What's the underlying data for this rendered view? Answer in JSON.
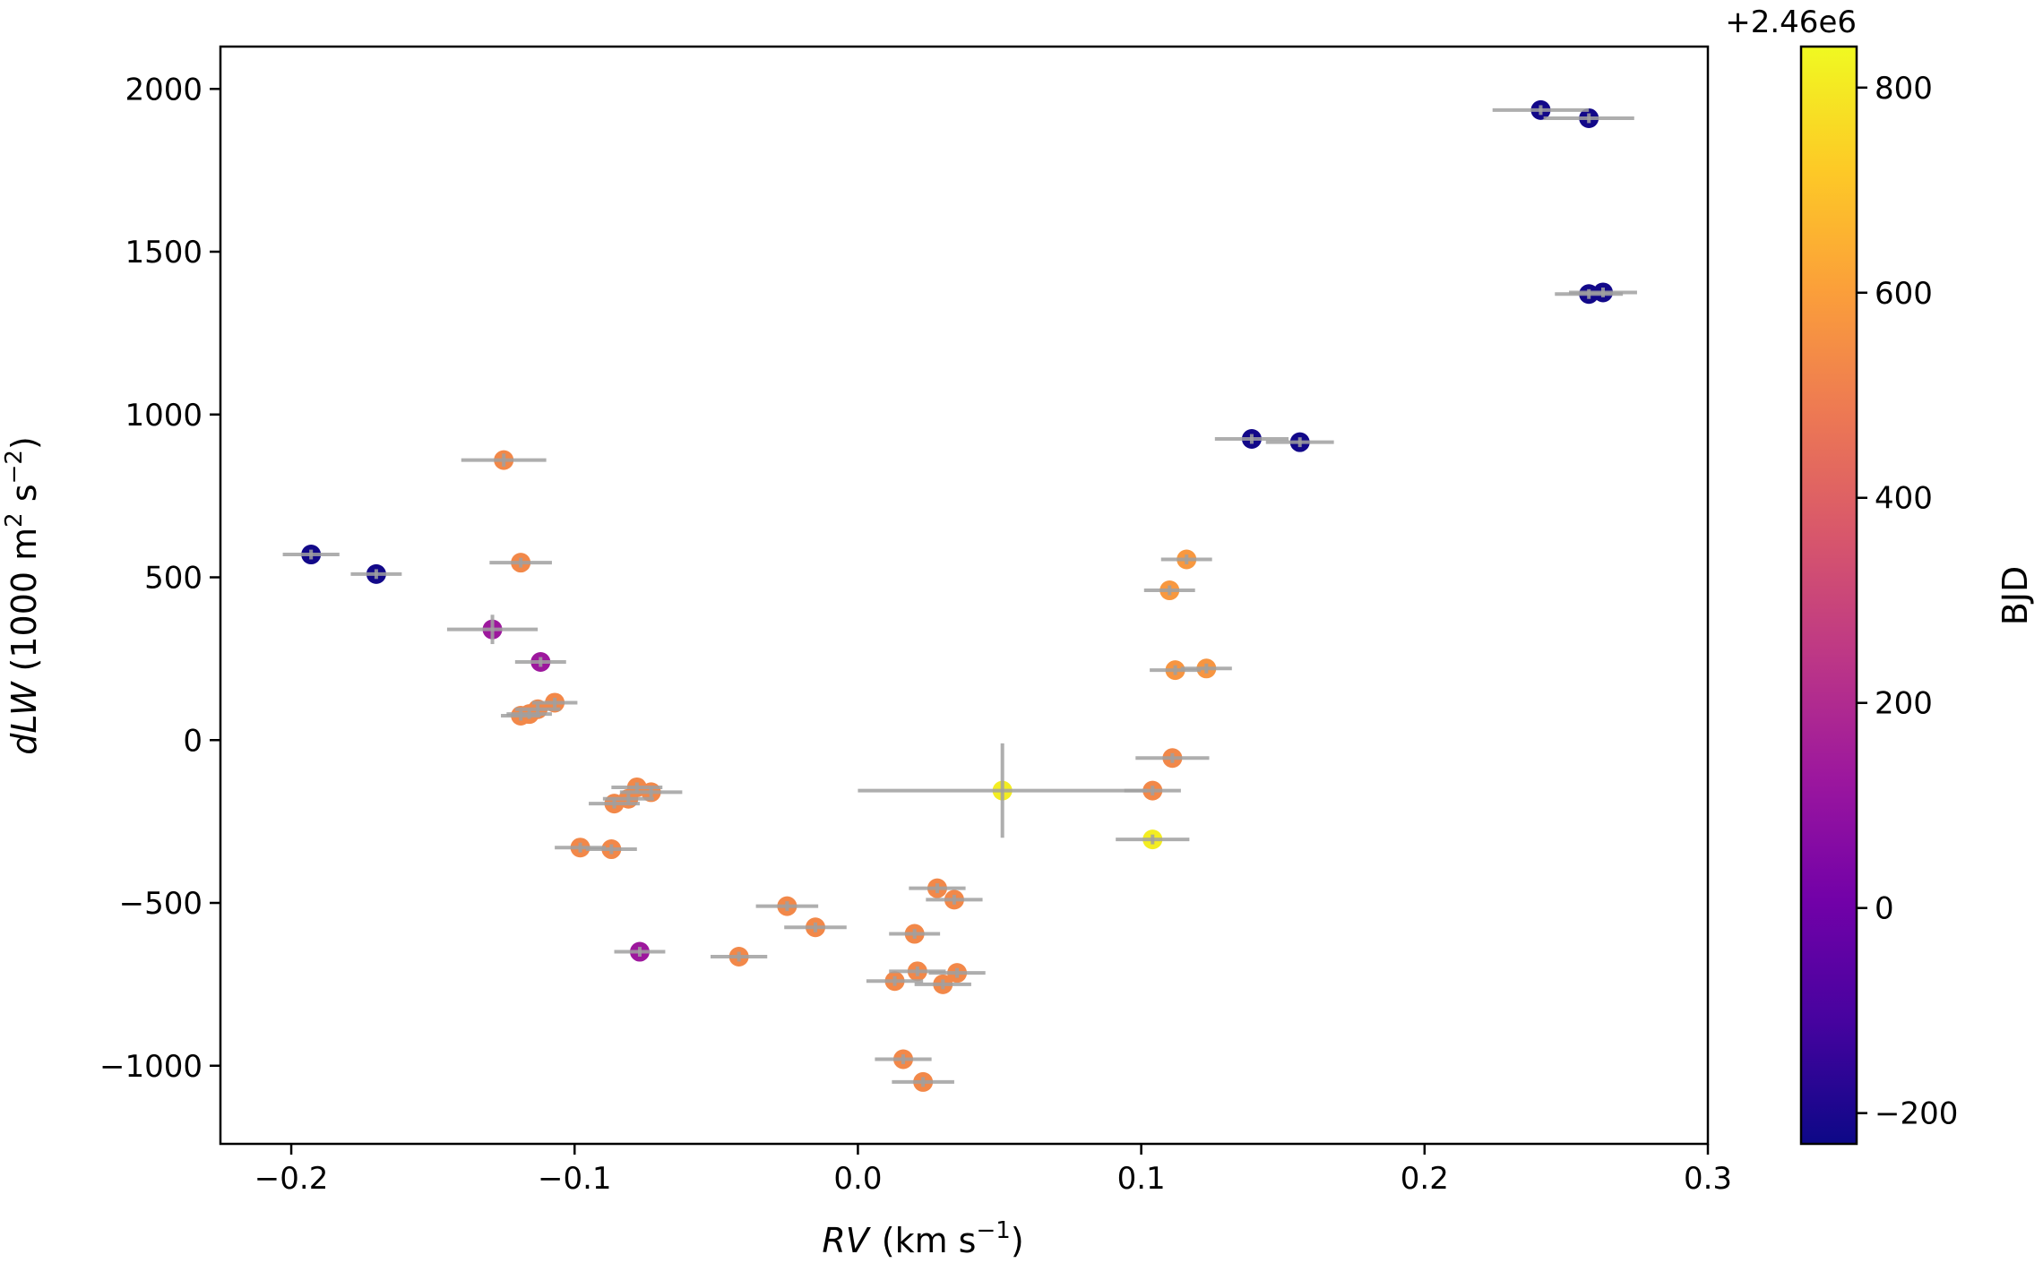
{
  "chart_data": {
    "type": "scatter",
    "xlabel_var": "RV",
    "xlabel_unit": "km s",
    "xlabel_exp": "−1",
    "ylabel_var": "dLW",
    "ylabel_unit_pre": "(1000 m",
    "ylabel_unit_mid": " s",
    "ylabel_unit_post": ")",
    "ylabel_exp1": "2",
    "ylabel_exp2": "−2",
    "xlim": [
      -0.225,
      0.3
    ],
    "ylim": [
      -1240,
      2130
    ],
    "xticks": [
      -0.2,
      -0.1,
      0.0,
      0.1,
      0.2,
      0.3
    ],
    "xtick_labels": [
      "−0.2",
      "−0.1",
      "0.0",
      "0.1",
      "0.2",
      "0.3"
    ],
    "yticks": [
      -1000,
      -500,
      0,
      500,
      1000,
      1500,
      2000
    ],
    "ytick_labels": [
      "−1000",
      "−500",
      "0",
      "500",
      "1000",
      "1500",
      "2000"
    ],
    "colorbar": {
      "label": "BJD",
      "offset_text": "+2.46e6",
      "range": [
        -230,
        840
      ],
      "ticks": [
        -200,
        0,
        200,
        400,
        600,
        800
      ],
      "tick_labels": [
        "−200",
        "0",
        "200",
        "400",
        "600",
        "800"
      ],
      "colormap": [
        "#0d0887",
        "#46039f",
        "#7201a8",
        "#9c179e",
        "#bd3786",
        "#d8576b",
        "#ed7953",
        "#fb9f3a",
        "#fdca26",
        "#f0f921"
      ]
    },
    "errorbar_color": "#a0a0a0",
    "points": [
      {
        "x": -0.193,
        "y": 570,
        "xerr": 0.01,
        "yerr": 15,
        "c": -220
      },
      {
        "x": -0.17,
        "y": 510,
        "xerr": 0.009,
        "yerr": 15,
        "c": -220
      },
      {
        "x": -0.125,
        "y": 860,
        "xerr": 0.015,
        "yerr": 20,
        "c": 530
      },
      {
        "x": -0.119,
        "y": 545,
        "xerr": 0.011,
        "yerr": 15,
        "c": 530
      },
      {
        "x": -0.129,
        "y": 340,
        "xerr": 0.016,
        "yerr": 45,
        "c": 130
      },
      {
        "x": -0.112,
        "y": 240,
        "xerr": 0.009,
        "yerr": 15,
        "c": 130
      },
      {
        "x": -0.107,
        "y": 115,
        "xerr": 0.008,
        "yerr": 15,
        "c": 530
      },
      {
        "x": -0.113,
        "y": 95,
        "xerr": 0.008,
        "yerr": 15,
        "c": 530
      },
      {
        "x": -0.116,
        "y": 80,
        "xerr": 0.008,
        "yerr": 15,
        "c": 530
      },
      {
        "x": -0.119,
        "y": 75,
        "xerr": 0.007,
        "yerr": 15,
        "c": 530
      },
      {
        "x": -0.078,
        "y": -145,
        "xerr": 0.009,
        "yerr": 15,
        "c": 530
      },
      {
        "x": -0.073,
        "y": -160,
        "xerr": 0.011,
        "yerr": 15,
        "c": 530
      },
      {
        "x": -0.081,
        "y": -180,
        "xerr": 0.009,
        "yerr": 15,
        "c": 530
      },
      {
        "x": -0.086,
        "y": -195,
        "xerr": 0.009,
        "yerr": 15,
        "c": 530
      },
      {
        "x": -0.098,
        "y": -330,
        "xerr": 0.009,
        "yerr": 15,
        "c": 530
      },
      {
        "x": -0.087,
        "y": -335,
        "xerr": 0.009,
        "yerr": 15,
        "c": 530
      },
      {
        "x": -0.077,
        "y": -650,
        "xerr": 0.009,
        "yerr": 15,
        "c": 130
      },
      {
        "x": -0.042,
        "y": -665,
        "xerr": 0.01,
        "yerr": 15,
        "c": 530
      },
      {
        "x": -0.025,
        "y": -510,
        "xerr": 0.011,
        "yerr": 15,
        "c": 530
      },
      {
        "x": -0.015,
        "y": -575,
        "xerr": 0.011,
        "yerr": 15,
        "c": 530
      },
      {
        "x": 0.051,
        "y": -155,
        "xerr": 0.051,
        "yerr": 145,
        "c": 810
      },
      {
        "x": 0.028,
        "y": -455,
        "xerr": 0.01,
        "yerr": 15,
        "c": 530
      },
      {
        "x": 0.034,
        "y": -490,
        "xerr": 0.01,
        "yerr": 15,
        "c": 530
      },
      {
        "x": 0.02,
        "y": -595,
        "xerr": 0.009,
        "yerr": 15,
        "c": 530
      },
      {
        "x": 0.021,
        "y": -710,
        "xerr": 0.01,
        "yerr": 15,
        "c": 530
      },
      {
        "x": 0.035,
        "y": -715,
        "xerr": 0.01,
        "yerr": 15,
        "c": 530
      },
      {
        "x": 0.013,
        "y": -740,
        "xerr": 0.01,
        "yerr": 15,
        "c": 530
      },
      {
        "x": 0.03,
        "y": -750,
        "xerr": 0.01,
        "yerr": 15,
        "c": 530
      },
      {
        "x": 0.016,
        "y": -980,
        "xerr": 0.01,
        "yerr": 15,
        "c": 530
      },
      {
        "x": 0.023,
        "y": -1050,
        "xerr": 0.011,
        "yerr": 15,
        "c": 530
      },
      {
        "x": 0.116,
        "y": 555,
        "xerr": 0.009,
        "yerr": 15,
        "c": 580
      },
      {
        "x": 0.11,
        "y": 460,
        "xerr": 0.009,
        "yerr": 15,
        "c": 580
      },
      {
        "x": 0.112,
        "y": 215,
        "xerr": 0.009,
        "yerr": 15,
        "c": 570
      },
      {
        "x": 0.123,
        "y": 220,
        "xerr": 0.009,
        "yerr": 15,
        "c": 570
      },
      {
        "x": 0.111,
        "y": -55,
        "xerr": 0.013,
        "yerr": 15,
        "c": 530
      },
      {
        "x": 0.104,
        "y": -155,
        "xerr": 0.01,
        "yerr": 15,
        "c": 530
      },
      {
        "x": 0.104,
        "y": -305,
        "xerr": 0.013,
        "yerr": 15,
        "c": 810
      },
      {
        "x": 0.139,
        "y": 925,
        "xerr": 0.013,
        "yerr": 15,
        "c": -220
      },
      {
        "x": 0.156,
        "y": 915,
        "xerr": 0.012,
        "yerr": 15,
        "c": -220
      },
      {
        "x": 0.241,
        "y": 1935,
        "xerr": 0.017,
        "yerr": 15,
        "c": -220
      },
      {
        "x": 0.258,
        "y": 1910,
        "xerr": 0.016,
        "yerr": 15,
        "c": -220
      },
      {
        "x": 0.258,
        "y": 1370,
        "xerr": 0.012,
        "yerr": 15,
        "c": -220
      },
      {
        "x": 0.263,
        "y": 1375,
        "xerr": 0.012,
        "yerr": 15,
        "c": -220
      }
    ]
  }
}
